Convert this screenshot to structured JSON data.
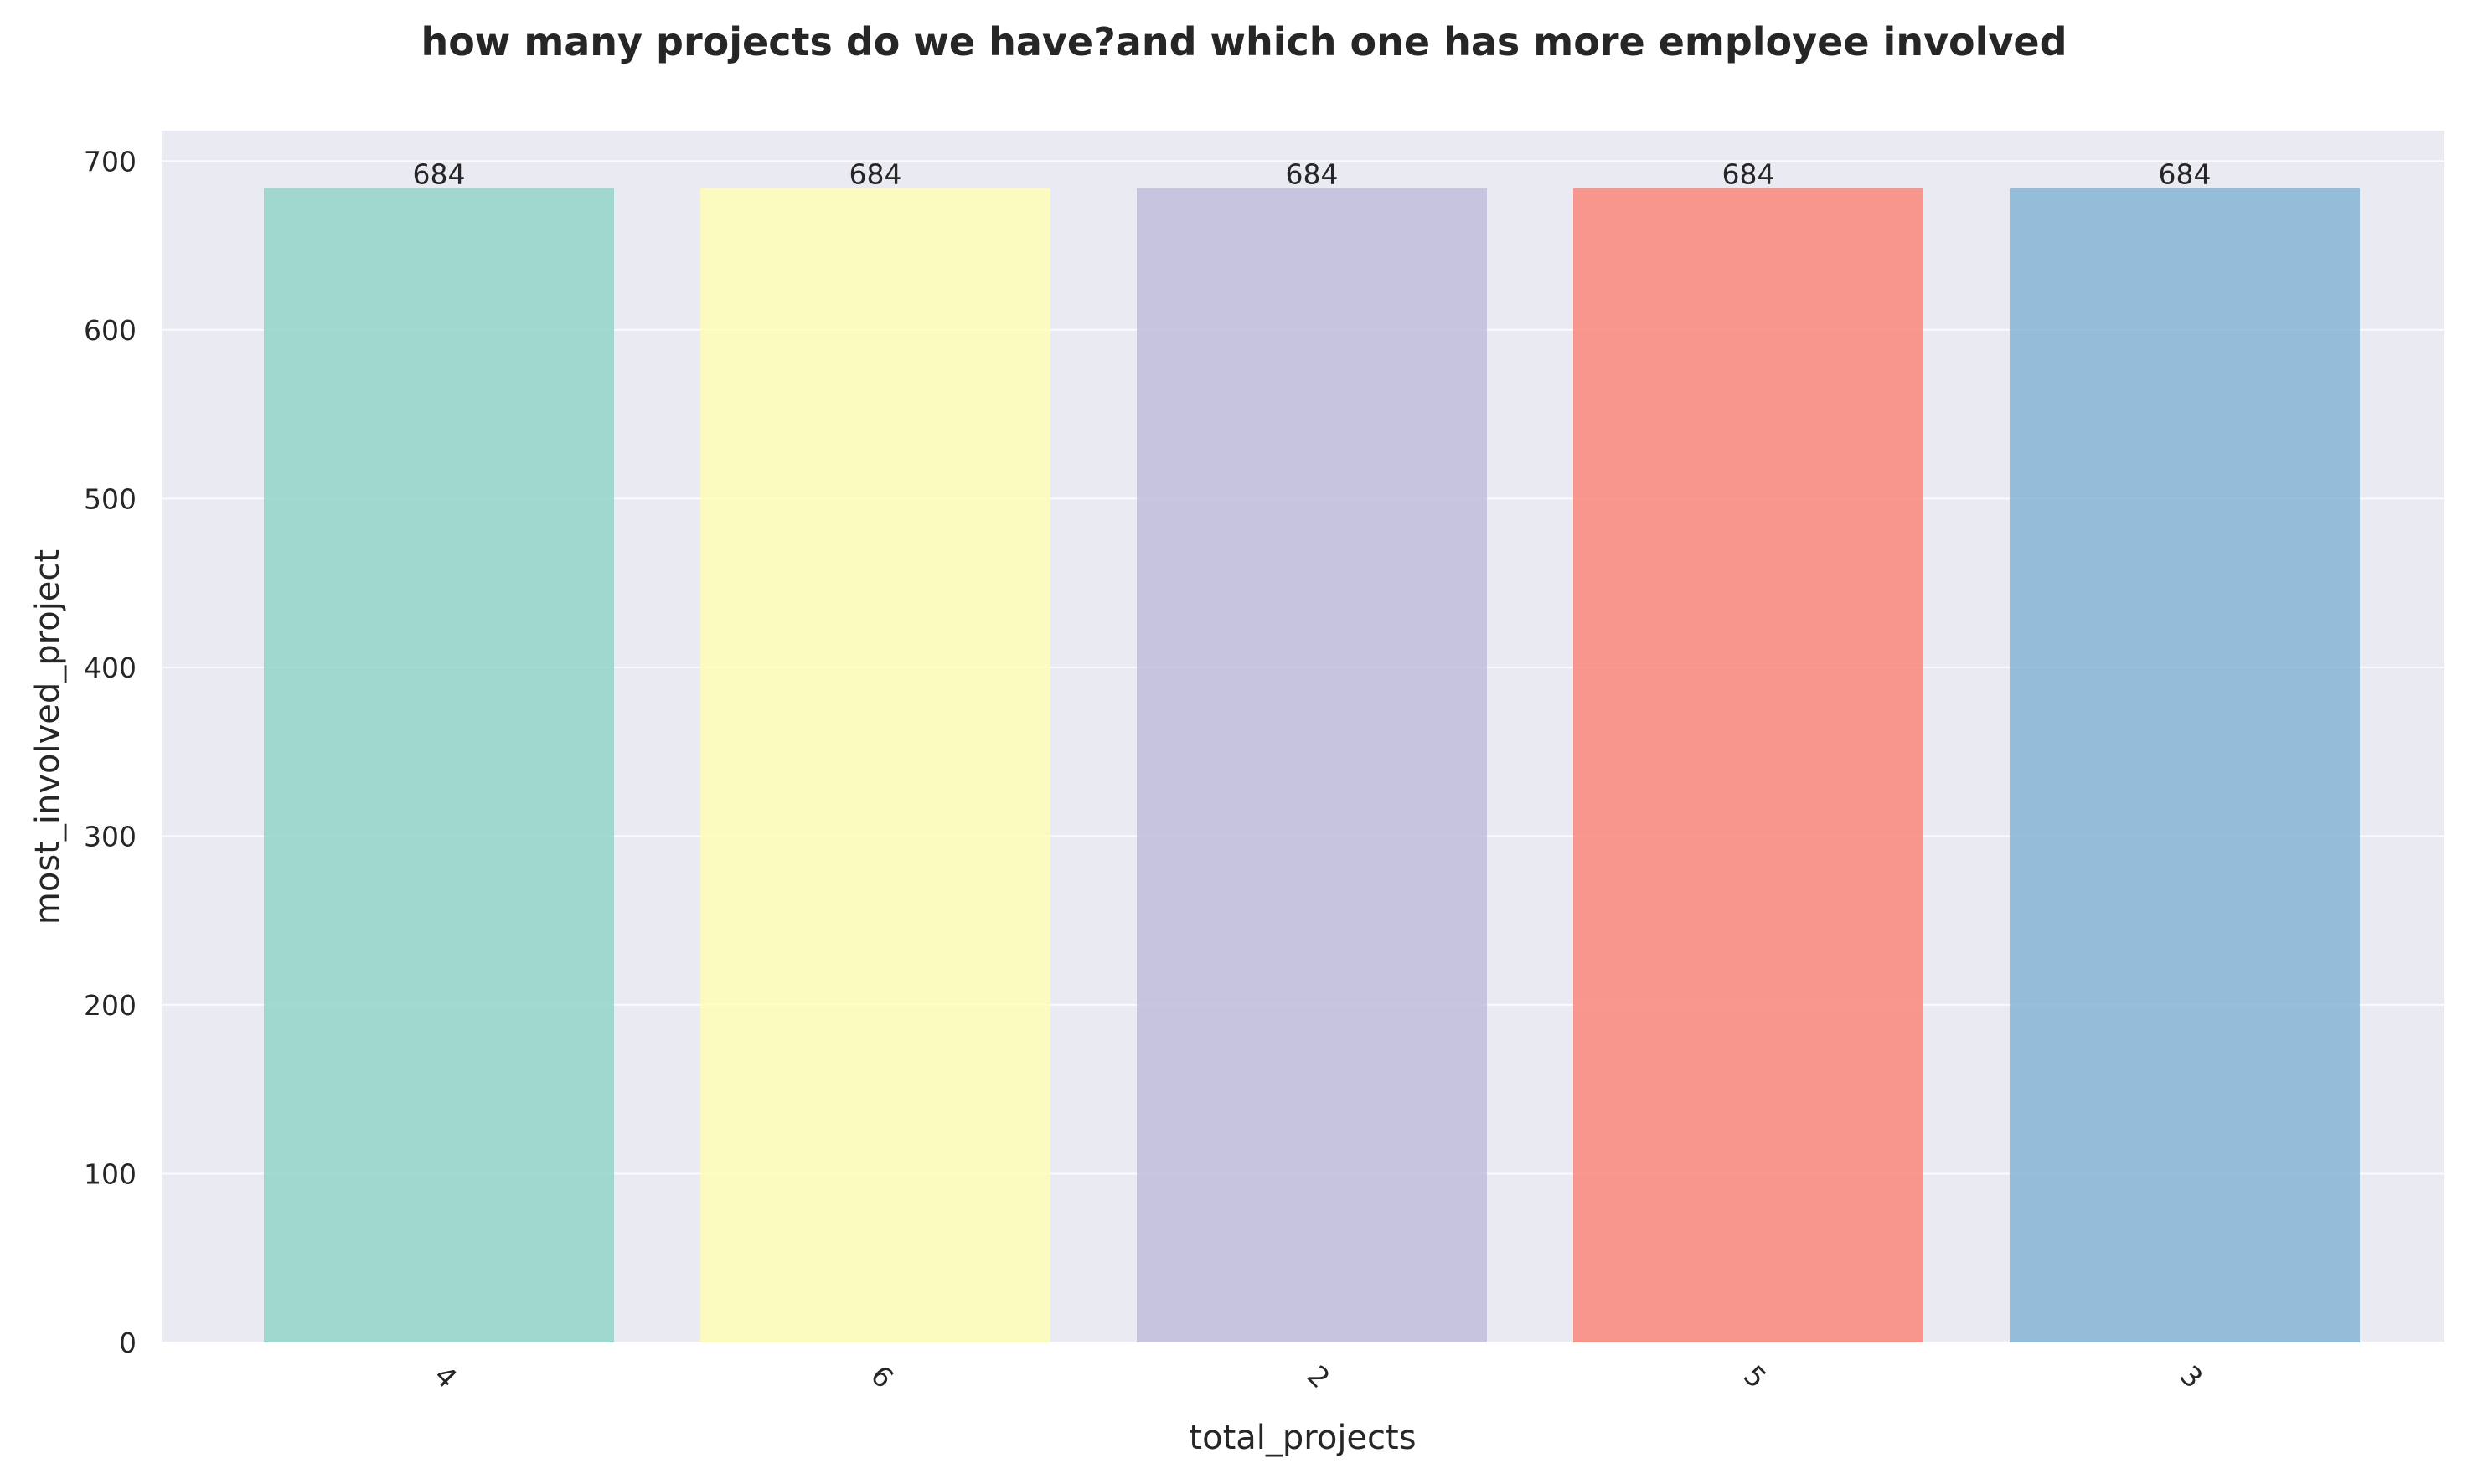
{
  "chart_data": {
    "type": "bar",
    "title": "how many projects do we have?and which one has more employee involved",
    "xlabel": "total_projects",
    "ylabel": "most_involved_project",
    "categories": [
      "4",
      "6",
      "2",
      "5",
      "3"
    ],
    "values": [
      684,
      684,
      684,
      684,
      684
    ],
    "data_labels": [
      "684",
      "684",
      "684",
      "684",
      "684"
    ],
    "bar_colors": [
      "#8dd3c7",
      "#ffffb3",
      "#bebada",
      "#fb8072",
      "#80b1d3"
    ],
    "ylim": [
      0,
      718
    ],
    "yticks": [
      0,
      100,
      200,
      300,
      400,
      500,
      600,
      700
    ],
    "ytick_labels": [
      "0",
      "100",
      "200",
      "300",
      "400",
      "500",
      "600",
      "700"
    ],
    "xtick_rotation": 45,
    "grid": true,
    "legend": "none",
    "plot_background": "#eaeaf2",
    "gridline_color": "#ffffff"
  }
}
